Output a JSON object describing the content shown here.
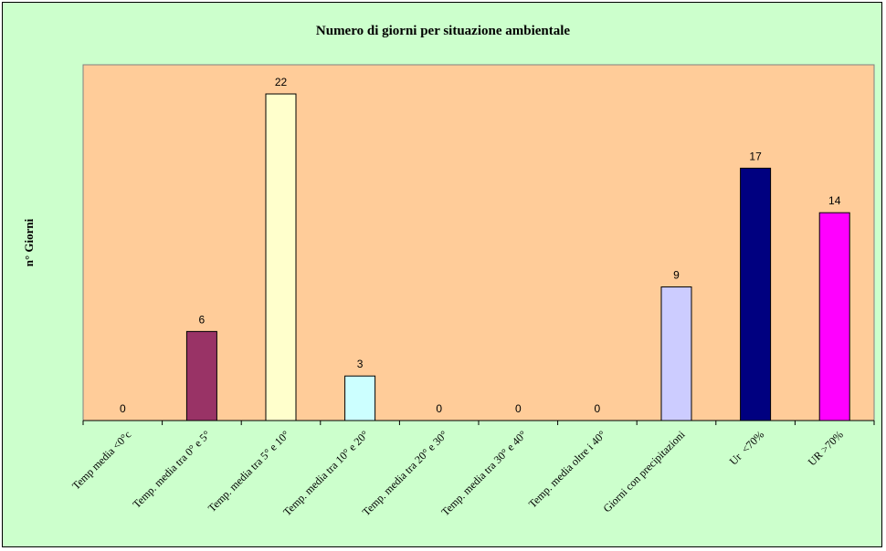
{
  "chart_data": {
    "type": "bar",
    "title": "Numero di giorni per situazione ambientale",
    "xlabel": "",
    "ylabel": "n° Giorni",
    "ylim": [
      0,
      22
    ],
    "grid": false,
    "legend": "none",
    "categories": [
      "Temp media <0°c",
      "Temp. media tra 0° e 5°",
      "Temp. media tra 5° e 10°",
      "Temp. media tra 10° e 20°",
      "Temp. media tra 20° e 30°",
      "Temp. media tra 30° e 40°",
      "Temp. media oltre i 40°",
      "Giorni con precipitazioni",
      "Ur  <70%",
      "UR >70%"
    ],
    "values": [
      0,
      6,
      22,
      3,
      0,
      0,
      0,
      9,
      17,
      14
    ],
    "bar_colors": [
      "#cccccc",
      "#993366",
      "#ffffcc",
      "#ccffff",
      "#ff8080",
      "#0066cc",
      "#ccccff",
      "#ccccff",
      "#000080",
      "#ff00ff"
    ],
    "plot_background": "#ffcc99",
    "chart_background": "#ccffcc"
  }
}
